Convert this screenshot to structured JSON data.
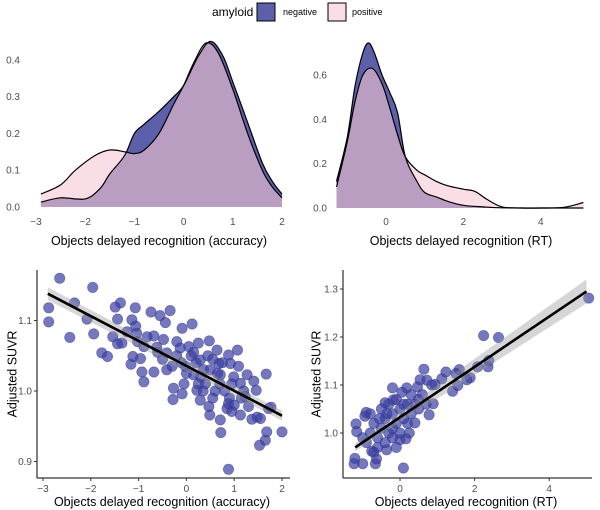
{
  "legend": {
    "title": "amyloid",
    "entries": [
      {
        "label": "negative",
        "color": "#5c5fa9"
      },
      {
        "label": "positive",
        "color": "#f7c8d3"
      }
    ]
  },
  "chart_data": [
    {
      "type": "area",
      "title": "",
      "xlabel": "Objects delayed recognition (accuracy)",
      "ylabel": "",
      "xlim": [
        -3,
        2
      ],
      "ylim": [
        0,
        0.45
      ],
      "xticks": [
        "-3",
        "-2",
        "-1",
        "0",
        "1",
        "2"
      ],
      "xtick_values": [
        -3,
        -2,
        -1,
        0,
        1,
        2
      ],
      "yticks": [
        "0.0",
        "0.1",
        "0.2",
        "0.3",
        "0.4"
      ],
      "ytick_values": [
        0,
        0.1,
        0.2,
        0.3,
        0.4
      ],
      "series": [
        {
          "name": "negative",
          "x": [
            -2.9,
            -2.5,
            -2.0,
            -1.7,
            -1.5,
            -1.2,
            -1.0,
            -0.8,
            -0.5,
            -0.2,
            0,
            0.3,
            0.55,
            0.8,
            1.0,
            1.3,
            1.6,
            1.8,
            2.0
          ],
          "y": [
            0.013,
            0.025,
            0.022,
            0.05,
            0.09,
            0.14,
            0.2,
            0.225,
            0.26,
            0.3,
            0.33,
            0.41,
            0.45,
            0.41,
            0.34,
            0.23,
            0.12,
            0.07,
            0.035
          ]
        },
        {
          "name": "positive",
          "x": [
            -2.9,
            -2.5,
            -2.2,
            -1.8,
            -1.5,
            -1.2,
            -1.0,
            -0.8,
            -0.5,
            -0.2,
            0,
            0.2,
            0.45,
            0.7,
            1.0,
            1.3,
            1.6,
            1.8,
            2.0
          ],
          "y": [
            0.035,
            0.06,
            0.1,
            0.14,
            0.155,
            0.15,
            0.145,
            0.155,
            0.2,
            0.28,
            0.33,
            0.39,
            0.445,
            0.42,
            0.32,
            0.2,
            0.1,
            0.055,
            0.025
          ]
        }
      ]
    },
    {
      "type": "area",
      "title": "",
      "xlabel": "Objects delayed recognition (RT)",
      "ylabel": "",
      "xlim": [
        -1.28,
        5.1
      ],
      "ylim": [
        0,
        0.76
      ],
      "xticks": [
        "0",
        "2",
        "4"
      ],
      "xtick_values": [
        0,
        2,
        4
      ],
      "yticks": [
        "0.0",
        "0.2",
        "0.4",
        "0.6"
      ],
      "ytick_values": [
        0,
        0.2,
        0.4,
        0.6
      ],
      "series": [
        {
          "name": "negative",
          "x": [
            -1.28,
            -1.0,
            -0.8,
            -0.6,
            -0.45,
            -0.3,
            -0.1,
            0.1,
            0.3,
            0.5,
            0.8,
            1.0,
            1.3,
            1.6,
            2.0,
            2.5,
            3.0,
            4.0,
            5.1
          ],
          "y": [
            0.12,
            0.32,
            0.55,
            0.7,
            0.745,
            0.7,
            0.6,
            0.52,
            0.43,
            0.23,
            0.12,
            0.07,
            0.05,
            0.03,
            0.012,
            0.005,
            0.001,
            0,
            0
          ]
        },
        {
          "name": "positive",
          "x": [
            -1.28,
            -1.0,
            -0.8,
            -0.6,
            -0.35,
            -0.1,
            0.1,
            0.3,
            0.5,
            0.8,
            1.0,
            1.3,
            1.6,
            2.0,
            2.3,
            2.6,
            3.0,
            3.5,
            4.0,
            4.6,
            5.1
          ],
          "y": [
            0.095,
            0.3,
            0.48,
            0.6,
            0.63,
            0.56,
            0.45,
            0.33,
            0.23,
            0.17,
            0.15,
            0.12,
            0.1,
            0.085,
            0.075,
            0.04,
            0.005,
            0,
            0,
            0.003,
            0.025
          ]
        }
      ]
    },
    {
      "type": "scatter",
      "title": "",
      "xlabel": "Objects delayed recognition (accuracy)",
      "ylabel": "Adjusted SUVR",
      "xlim": [
        -3.13,
        2.17
      ],
      "ylim": [
        0.877,
        1.172
      ],
      "xticks": [
        "-3",
        "-2",
        "-1",
        "0",
        "1",
        "2"
      ],
      "xtick_values": [
        -3,
        -2,
        -1,
        0,
        1,
        2
      ],
      "yticks": [
        "0.9",
        "1.0",
        "1.1"
      ],
      "ytick_values": [
        0.9,
        1.0,
        1.1
      ],
      "fit": {
        "x": [
          -2.9,
          2.0
        ],
        "y": [
          1.138,
          0.965
        ],
        "ci_halfwidth": [
          0.009,
          0.007
        ]
      },
      "points": [
        [
          -2.65,
          1.16
        ],
        [
          -1.96,
          1.147
        ],
        [
          -2.88,
          1.118
        ],
        [
          -2.88,
          1.098
        ],
        [
          -2.34,
          1.125
        ],
        [
          -2.44,
          1.076
        ],
        [
          -2.08,
          1.102
        ],
        [
          -1.94,
          1.081
        ],
        [
          -1.77,
          1.054
        ],
        [
          -1.65,
          1.049
        ],
        [
          -1.38,
          1.125
        ],
        [
          -1.49,
          1.119
        ],
        [
          -1.44,
          1.102
        ],
        [
          -1.54,
          1.077
        ],
        [
          -1.44,
          1.067
        ],
        [
          -1.35,
          1.068
        ],
        [
          -1.16,
          1.038
        ],
        [
          -1.12,
          1.049
        ],
        [
          -1.07,
          1.118
        ],
        [
          -1.14,
          1.101
        ],
        [
          -1.06,
          1.092
        ],
        [
          -1.04,
          1.082
        ],
        [
          -1.02,
          1.07
        ],
        [
          -0.96,
          1.046
        ],
        [
          -0.93,
          1.027
        ],
        [
          -0.89,
          1.013
        ],
        [
          -0.74,
          1.112
        ],
        [
          -0.82,
          1.077
        ],
        [
          -0.68,
          1.078
        ],
        [
          -0.55,
          1.107
        ],
        [
          -0.44,
          1.097
        ],
        [
          -0.34,
          1.114
        ],
        [
          -0.62,
          1.062
        ],
        [
          -0.48,
          1.073
        ],
        [
          -0.41,
          1.054
        ],
        [
          -0.68,
          1.027
        ],
        [
          -0.41,
          1.03
        ],
        [
          -0.27,
          1.004
        ],
        [
          -0.28,
          0.988
        ],
        [
          -0.09,
          0.996
        ],
        [
          -0.09,
          1.089
        ],
        [
          0.12,
          1.095
        ],
        [
          -0.13,
          1.061
        ],
        [
          0.05,
          1.063
        ],
        [
          -0.02,
          1.035
        ],
        [
          0.15,
          1.023
        ],
        [
          0.25,
          1.068
        ],
        [
          0.48,
          1.071
        ],
        [
          0.29,
          1.044
        ],
        [
          0.36,
          1.03
        ],
        [
          0.22,
          1.001
        ],
        [
          0.29,
          0.987
        ],
        [
          0.47,
          0.978
        ],
        [
          0.49,
          0.966
        ],
        [
          0.64,
          1.058
        ],
        [
          0.68,
          1.039
        ],
        [
          0.71,
          1.023
        ],
        [
          0.71,
          0.959
        ],
        [
          0.72,
          0.941
        ],
        [
          0.88,
          1.051
        ],
        [
          0.92,
          1.039
        ],
        [
          0.99,
          1.02
        ],
        [
          1.07,
          1.058
        ],
        [
          1.09,
          1.035
        ],
        [
          1.13,
          1.011
        ],
        [
          0.88,
          0.982
        ],
        [
          0.95,
          0.971
        ],
        [
          1.13,
          0.966
        ],
        [
          1.27,
          1.023
        ],
        [
          1.23,
          0.992
        ],
        [
          1.3,
          0.978
        ],
        [
          1.37,
          0.96
        ],
        [
          1.41,
          1.014
        ],
        [
          1.46,
          1.001
        ],
        [
          1.48,
          0.963
        ],
        [
          1.53,
          0.923
        ],
        [
          1.65,
          0.93
        ],
        [
          1.68,
          0.942
        ],
        [
          1.67,
          1.024
        ],
        [
          1.72,
          0.975
        ],
        [
          1.77,
          0.977
        ],
        [
          2.0,
          0.942
        ],
        [
          0.88,
          0.889
        ],
        [
          1.55,
          0.961
        ],
        [
          -0.89,
          1.063
        ],
        [
          -1.24,
          1.084
        ],
        [
          0.3,
          1.02
        ],
        [
          0.4,
          1.01
        ],
        [
          0.5,
          1.03
        ],
        [
          0.6,
          1.0
        ],
        [
          0.2,
          1.04
        ],
        [
          0.1,
          1.05
        ],
        [
          0.45,
          1.05
        ],
        [
          0.55,
          1.045
        ],
        [
          0.7,
          1.01
        ],
        [
          0.8,
          1.0
        ],
        [
          0.9,
          0.99
        ],
        [
          1.0,
          0.98
        ],
        [
          0.35,
          1.0
        ],
        [
          -0.2,
          1.05
        ],
        [
          -0.1,
          1.04
        ],
        [
          0.0,
          1.025
        ],
        [
          -0.3,
          1.035
        ],
        [
          -0.5,
          1.045
        ],
        [
          -0.6,
          1.055
        ],
        [
          -0.2,
          1.07
        ],
        [
          0.15,
          1.055
        ],
        [
          0.65,
          1.025
        ],
        [
          0.75,
          1.04
        ],
        [
          1.15,
          0.99
        ],
        [
          1.2,
          1.0
        ],
        [
          0.95,
          1.01
        ],
        [
          0.85,
          0.975
        ],
        [
          0.55,
          0.99
        ],
        [
          0.25,
          1.01
        ],
        [
          -0.05,
          1.01
        ]
      ]
    },
    {
      "type": "scatter",
      "title": "",
      "xlabel": "Objects delayed recognition (RT)",
      "ylabel": "Adjusted SUVR",
      "xlim": [
        -1.53,
        5.1
      ],
      "ylim": [
        0.906,
        1.34
      ],
      "xticks": [
        "0",
        "2",
        "4"
      ],
      "xtick_values": [
        0,
        2,
        4
      ],
      "yticks": [
        "1.0",
        "1.1",
        "1.2",
        "1.3"
      ],
      "ytick_values": [
        1.0,
        1.1,
        1.2,
        1.3
      ],
      "fit": {
        "x": [
          -1.2,
          5.0
        ],
        "y": [
          0.97,
          1.295
        ],
        "ci_halfwidth": [
          0.008,
          0.025
        ]
      },
      "points": [
        [
          5.06,
          1.281
        ],
        [
          2.24,
          1.203
        ],
        [
          2.64,
          1.199
        ],
        [
          2.08,
          1.138
        ],
        [
          2.36,
          1.138
        ],
        [
          2.38,
          1.151
        ],
        [
          1.88,
          1.115
        ],
        [
          1.79,
          1.111
        ],
        [
          1.41,
          1.087
        ],
        [
          1.55,
          1.099
        ],
        [
          1.59,
          1.132
        ],
        [
          1.5,
          1.124
        ],
        [
          1.23,
          1.127
        ],
        [
          1.12,
          1.113
        ],
        [
          0.64,
          1.133
        ],
        [
          0.72,
          1.11
        ],
        [
          0.54,
          1.111
        ],
        [
          0.47,
          1.096
        ],
        [
          0.94,
          1.101
        ],
        [
          0.89,
          1.061
        ],
        [
          0.78,
          1.038
        ],
        [
          0.09,
          0.927
        ],
        [
          -0.2,
          1.094
        ],
        [
          0.18,
          1.094
        ],
        [
          -1.18,
          1.019
        ],
        [
          -1.16,
          1.003
        ],
        [
          -1.21,
          0.947
        ],
        [
          -1.23,
          0.936
        ],
        [
          -1.0,
          0.936
        ],
        [
          -0.66,
          0.936
        ],
        [
          -0.63,
          0.946
        ],
        [
          -0.76,
          0.962
        ],
        [
          -0.91,
          1.043
        ],
        [
          -0.94,
          1.035
        ],
        [
          -0.36,
          0.965
        ],
        [
          0,
          0.986
        ],
        [
          0.16,
          0.988
        ],
        [
          0.4,
          1.021
        ],
        [
          -0.18,
          1.069
        ],
        [
          -0.4,
          1.063
        ],
        [
          -0.8,
          1.0
        ],
        [
          -0.7,
          1.02
        ],
        [
          -0.6,
          0.99
        ],
        [
          -0.5,
          1.01
        ],
        [
          -0.4,
          1.03
        ],
        [
          -0.3,
          1.0
        ],
        [
          -0.2,
          1.04
        ],
        [
          -0.1,
          1.02
        ],
        [
          0,
          1.05
        ],
        [
          0.1,
          1.03
        ],
        [
          0.2,
          1.06
        ],
        [
          0.3,
          1.04
        ],
        [
          -0.5,
          1.05
        ],
        [
          -0.3,
          1.06
        ],
        [
          -0.1,
          1.07
        ],
        [
          0.1,
          1.06
        ],
        [
          0.2,
          1.02
        ],
        [
          0.4,
          1.06
        ],
        [
          0.5,
          1.07
        ],
        [
          -0.6,
          0.97
        ],
        [
          -0.4,
          0.98
        ],
        [
          -0.2,
          0.99
        ],
        [
          0,
          1.0
        ],
        [
          -0.9,
          0.98
        ],
        [
          -1.0,
          0.99
        ],
        [
          -0.7,
          0.96
        ],
        [
          0.3,
          1.08
        ],
        [
          0.5,
          1.05
        ],
        [
          0.6,
          1.08
        ],
        [
          -0.2,
          1.01
        ],
        [
          0.05,
          1.085
        ],
        [
          -0.35,
          1.04
        ],
        [
          -0.55,
          1.03
        ],
        [
          0.25,
          1.0
        ],
        [
          0.7,
          1.06
        ],
        [
          0.85,
          1.1
        ],
        [
          -0.8,
          1.04
        ],
        [
          -0.1,
          0.97
        ]
      ]
    }
  ]
}
